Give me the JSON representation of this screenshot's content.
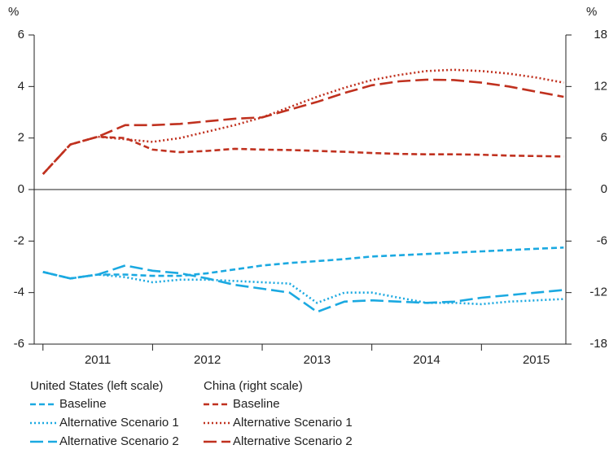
{
  "chart_data": {
    "type": "line",
    "y_label": "%",
    "y2_label": "%",
    "x": [
      2011,
      2011.25,
      2011.5,
      2011.75,
      2012,
      2012.25,
      2012.5,
      2012.75,
      2013,
      2013.25,
      2013.5,
      2013.75,
      2014,
      2014.25,
      2014.5,
      2014.75,
      2015,
      2015.25,
      2015.5,
      2015.75
    ],
    "xlim": [
      2010.92,
      2015.77
    ],
    "xticks": [
      2011,
      2012,
      2013,
      2014,
      2015
    ],
    "ylim": [
      -6,
      6
    ],
    "yticks": [
      6,
      4,
      2,
      0,
      -2,
      -4,
      -6
    ],
    "y2lim": [
      -18,
      18
    ],
    "y2ticks": [
      18,
      12,
      6,
      0,
      -6,
      -12,
      -18
    ],
    "legend_groups": [
      "United States (left scale)",
      "China (right scale)"
    ],
    "series": [
      {
        "name": "Baseline",
        "color": "#1ba9e1",
        "dash": "dashed",
        "axis": "y",
        "values": [
          -3.2,
          -3.45,
          -3.3,
          -3.3,
          -3.35,
          -3.35,
          -3.25,
          -3.1,
          -2.95,
          -2.85,
          -2.78,
          -2.7,
          -2.6,
          -2.55,
          -2.5,
          -2.45,
          -2.4,
          -2.35,
          -2.3,
          -2.25
        ]
      },
      {
        "name": "Alternative Scenario 1",
        "color": "#1ba9e1",
        "dash": "dotted",
        "axis": "y",
        "values": [
          -3.2,
          -3.45,
          -3.3,
          -3.4,
          -3.6,
          -3.5,
          -3.5,
          -3.55,
          -3.6,
          -3.65,
          -4.4,
          -4.0,
          -4.0,
          -4.2,
          -4.4,
          -4.4,
          -4.45,
          -4.35,
          -4.3,
          -4.25
        ]
      },
      {
        "name": "Alternative Scenario 2",
        "color": "#1ba9e1",
        "dash": "longdash",
        "axis": "y",
        "values": [
          -3.2,
          -3.45,
          -3.3,
          -2.95,
          -3.15,
          -3.25,
          -3.45,
          -3.7,
          -3.85,
          -4.0,
          -4.75,
          -4.35,
          -4.3,
          -4.35,
          -4.4,
          -4.35,
          -4.2,
          -4.1,
          -4.0,
          -3.9
        ]
      },
      {
        "name": "Baseline",
        "color": "#c0311f",
        "dash": "dashed",
        "axis": "y2",
        "values": [
          1.8,
          5.25,
          6.15,
          6.0,
          4.65,
          4.35,
          4.5,
          4.75,
          4.65,
          4.6,
          4.5,
          4.4,
          4.25,
          4.15,
          4.1,
          4.1,
          4.05,
          3.95,
          3.9,
          3.85
        ]
      },
      {
        "name": "Alternative Scenario 1",
        "color": "#c0311f",
        "dash": "dotted",
        "axis": "y2",
        "values": [
          1.8,
          5.25,
          6.15,
          5.85,
          5.55,
          6.0,
          6.75,
          7.5,
          8.4,
          9.6,
          10.8,
          11.85,
          12.75,
          13.35,
          13.8,
          13.95,
          13.8,
          13.5,
          13.05,
          12.45
        ]
      },
      {
        "name": "Alternative Scenario 2",
        "color": "#c0311f",
        "dash": "longdash",
        "axis": "y2",
        "values": [
          1.8,
          5.25,
          6.15,
          7.5,
          7.5,
          7.65,
          7.95,
          8.25,
          8.4,
          9.3,
          10.2,
          11.25,
          12.15,
          12.6,
          12.8,
          12.75,
          12.45,
          12.0,
          11.4,
          10.8
        ]
      }
    ]
  }
}
